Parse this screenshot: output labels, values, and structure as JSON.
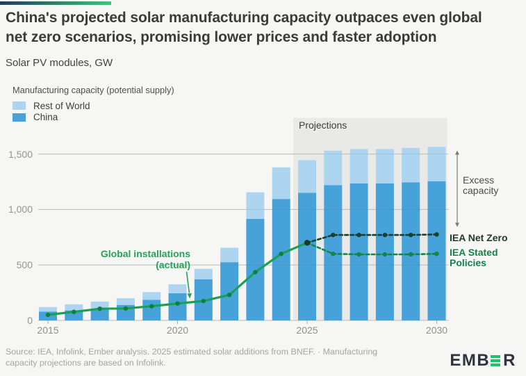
{
  "header": {
    "title": "China's projected solar manufacturing capacity outpaces even global\nnet zero scenarios, promising lower prices and faster adoption",
    "subtitle": "Solar PV modules, GW"
  },
  "legend": {
    "title": "Manufacturing capacity (potential supply)",
    "items": [
      {
        "label": "Rest of World",
        "color": "#aed5f0"
      },
      {
        "label": "China",
        "color": "#47a2d9"
      }
    ]
  },
  "chart_data": {
    "type": "bar",
    "title": "China's projected solar manufacturing capacity outpaces even global net zero scenarios, promising lower prices and faster adoption",
    "subtitle": "Solar PV modules, GW",
    "categories": [
      2015,
      2016,
      2017,
      2018,
      2019,
      2020,
      2021,
      2022,
      2023,
      2024,
      2025,
      2026,
      2027,
      2028,
      2029,
      2030
    ],
    "series": [
      {
        "name": "China",
        "type": "bar",
        "color": "#47a2d9",
        "values": [
          80,
          90,
          105,
          140,
          185,
          245,
          370,
          525,
          915,
          1095,
          1150,
          1220,
          1235,
          1235,
          1245,
          1255
        ]
      },
      {
        "name": "Rest of World",
        "type": "bar",
        "color": "#aed5f0",
        "values": [
          40,
          55,
          65,
          60,
          70,
          80,
          95,
          130,
          240,
          285,
          295,
          310,
          310,
          310,
          310,
          310
        ]
      },
      {
        "name": "Global installations (actual)",
        "type": "line",
        "style": "solid",
        "color": "#1aa056",
        "marker_color": "#0c8040",
        "x": [
          2015,
          2016,
          2017,
          2018,
          2019,
          2020,
          2021,
          2022,
          2023,
          2024,
          2025
        ],
        "values": [
          50,
          77,
          105,
          108,
          128,
          152,
          175,
          230,
          435,
          600,
          700
        ]
      },
      {
        "name": "IEA Net Zero",
        "type": "line",
        "style": "dashed",
        "color": "#18402a",
        "marker_color": "#18402a",
        "x": [
          2025,
          2026,
          2027,
          2028,
          2029,
          2030
        ],
        "values": [
          700,
          770,
          770,
          770,
          770,
          775
        ]
      },
      {
        "name": "IEA Stated Policies",
        "type": "line",
        "style": "dashed",
        "color": "#158449",
        "marker_color": "#158449",
        "x": [
          2025,
          2026,
          2027,
          2028,
          2029,
          2030
        ],
        "values": [
          700,
          600,
          595,
          595,
          595,
          600
        ]
      }
    ],
    "ylim": [
      0,
      1600
    ],
    "yticks": [
      0,
      500,
      1000,
      1500
    ],
    "xticks": [
      2015,
      2020,
      2025,
      2030
    ],
    "grid": true,
    "legend_position": "top-left",
    "projection_region": {
      "label": "Projections",
      "from_year": 2025,
      "to_year": 2030,
      "background": "#e9e9e7"
    }
  },
  "annotations": {
    "projections_label": "Projections",
    "global_installations_label": "Global installations\n(actual)",
    "excess_capacity_label": "Excess\ncapacity",
    "iea_net_zero_label": "IEA Net Zero",
    "iea_stated_policies_label": "IEA Stated\nPolicies"
  },
  "footer": {
    "source": "Source: IEA, Infolink, Ember analysis. 2025 estimated solar additions from BNEF. · Manufacturing\ncapacity projections are based on Infolink.",
    "logo_prefix": "EMB",
    "logo_suffix": "R"
  }
}
